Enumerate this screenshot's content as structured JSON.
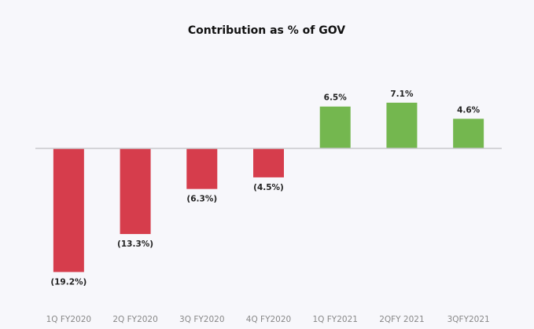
{
  "chart_data": {
    "type": "bar",
    "title": "Contribution as % of GOV",
    "xlabel": "",
    "ylabel": "",
    "categories": [
      "1Q FY2020",
      "2Q FY2020",
      "3Q FY2020",
      "4Q FY2020",
      "1Q FY2021",
      "2QFY 2021",
      "3QFY2021"
    ],
    "values": [
      -19.2,
      -13.3,
      -6.3,
      -4.5,
      6.5,
      7.1,
      4.6
    ],
    "data_labels": [
      "(19.2%)",
      "(13.3%)",
      "(6.3%)",
      "(4.5%)",
      "6.5%",
      "7.1%",
      "4.6%"
    ],
    "ylim": [
      -19.2,
      7.1
    ],
    "grid": false,
    "colors": {
      "negative": "#d63d4c",
      "positive": "#74b74f",
      "axis": "#c8c8cc"
    }
  }
}
